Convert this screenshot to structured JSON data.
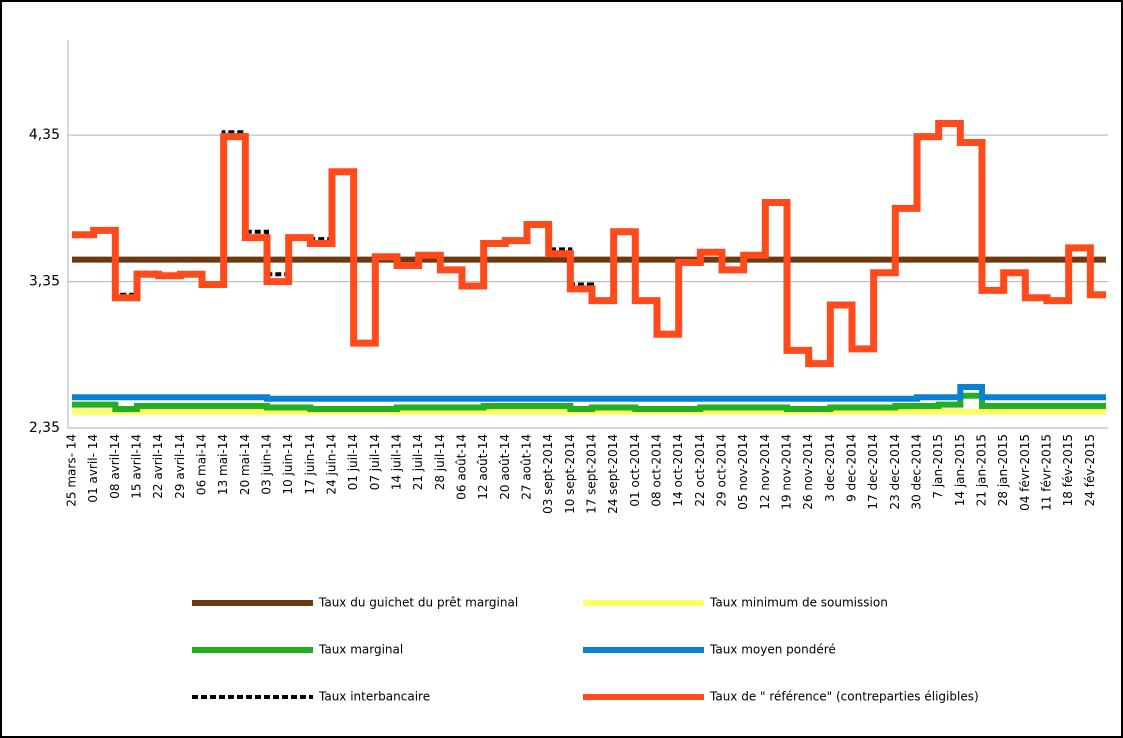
{
  "chart_data": {
    "type": "line",
    "step": true,
    "categories": [
      "25 mars- 14",
      "01 avril- 14",
      "08 avril-14",
      "15 avril-14",
      "22 avril-14",
      "29 avril-14",
      "06 mai-14",
      "13 mai-14",
      "20 mai-14",
      "03 juin-14",
      "10 juin-14",
      "17 juin-14",
      "24 juin-14",
      "01 juil-14",
      "07 juil-14",
      "14 juil-14",
      "21 juil-14",
      "28 juil-14",
      "06 août-14",
      "12 août-14",
      "20 août-14",
      "27 août-14",
      "03 sept-2014",
      "10 sept-2014",
      "17 sept-2014",
      "24 sept-2014",
      "01 oct-2014",
      "08 oct-2014",
      "14 oct-2014",
      "22 oct-2014",
      "29 oct-2014",
      "05 nov-2014",
      "12 nov-2014",
      "19 nov-2014",
      "26 nov-2014",
      "3 dec-2014",
      "9 dec-2014",
      "17 dec-2014",
      "23 dec-2014",
      "30 dec-2014",
      "7 jan-2015",
      "14 jan-2015",
      "21 jan-2015",
      "28 jan-2015",
      "04 févr-2015",
      "11 févr-2015",
      "18 fév-2015",
      "24 fév-2015"
    ],
    "series": [
      {
        "name": "Taux du guichet du prêt marginal",
        "color": "#6b3a10",
        "values": [
          3.5,
          3.5,
          3.5,
          3.5,
          3.5,
          3.5,
          3.5,
          3.5,
          3.5,
          3.5,
          3.5,
          3.5,
          3.5,
          3.5,
          3.5,
          3.5,
          3.5,
          3.5,
          3.5,
          3.5,
          3.5,
          3.5,
          3.5,
          3.5,
          3.5,
          3.5,
          3.5,
          3.5,
          3.5,
          3.5,
          3.5,
          3.5,
          3.5,
          3.5,
          3.5,
          3.5,
          3.5,
          3.5,
          3.5,
          3.5,
          3.5,
          3.5,
          3.5,
          3.5,
          3.5,
          3.5,
          3.5,
          3.5
        ]
      },
      {
        "name": "Taux minimum de soumission",
        "color": "#ffff66",
        "values": [
          2.46,
          2.46,
          2.46,
          2.46,
          2.46,
          2.46,
          2.46,
          2.46,
          2.46,
          2.46,
          2.46,
          2.46,
          2.46,
          2.46,
          2.46,
          2.46,
          2.46,
          2.46,
          2.46,
          2.46,
          2.46,
          2.46,
          2.46,
          2.46,
          2.46,
          2.46,
          2.46,
          2.46,
          2.46,
          2.46,
          2.46,
          2.46,
          2.46,
          2.46,
          2.46,
          2.46,
          2.46,
          2.46,
          2.46,
          2.46,
          2.46,
          2.46,
          2.46,
          2.46,
          2.46,
          2.46,
          2.46,
          2.46
        ]
      },
      {
        "name": "Taux marginal",
        "color": "#22b022",
        "values": [
          2.51,
          2.51,
          2.48,
          2.5,
          2.5,
          2.5,
          2.5,
          2.5,
          2.5,
          2.49,
          2.49,
          2.48,
          2.48,
          2.48,
          2.48,
          2.49,
          2.49,
          2.49,
          2.49,
          2.5,
          2.5,
          2.5,
          2.5,
          2.48,
          2.49,
          2.49,
          2.48,
          2.48,
          2.48,
          2.49,
          2.49,
          2.49,
          2.49,
          2.48,
          2.48,
          2.49,
          2.49,
          2.49,
          2.5,
          2.5,
          2.51,
          2.57,
          2.5,
          2.5,
          2.5,
          2.5,
          2.5,
          2.5
        ]
      },
      {
        "name": "Taux moyen pondéré",
        "color": "#0a80d0",
        "values": [
          2.56,
          2.56,
          2.56,
          2.56,
          2.56,
          2.56,
          2.56,
          2.56,
          2.56,
          2.55,
          2.55,
          2.55,
          2.55,
          2.55,
          2.55,
          2.55,
          2.55,
          2.55,
          2.55,
          2.55,
          2.55,
          2.55,
          2.55,
          2.55,
          2.55,
          2.55,
          2.55,
          2.55,
          2.55,
          2.55,
          2.55,
          2.55,
          2.55,
          2.55,
          2.55,
          2.55,
          2.55,
          2.55,
          2.55,
          2.56,
          2.56,
          2.63,
          2.56,
          2.56,
          2.56,
          2.56,
          2.56,
          2.56
        ]
      },
      {
        "name": "Taux interbancaire",
        "color": "#000000",
        "dash": true,
        "values": [
          3.67,
          3.7,
          3.26,
          3.41,
          3.39,
          3.4,
          3.33,
          4.37,
          3.69,
          3.4,
          3.65,
          3.64,
          4.1,
          2.93,
          3.52,
          3.46,
          3.53,
          3.43,
          3.32,
          3.61,
          3.63,
          3.74,
          3.57,
          3.33,
          3.22,
          3.7,
          3.22,
          3.0,
          3.48,
          3.55,
          3.43,
          3.53,
          3.89,
          2.88,
          2.79,
          3.19,
          2.89,
          3.41,
          3.85,
          4.34,
          4.43,
          4.3,
          3.29,
          3.41,
          3.24,
          3.22,
          3.58,
          3.26
        ]
      },
      {
        "name": "Taux de \" référence\" (contreparties éligibles)",
        "color": "#ff4a1c",
        "values": [
          3.67,
          3.7,
          3.24,
          3.4,
          3.39,
          3.4,
          3.33,
          4.34,
          3.65,
          3.35,
          3.65,
          3.61,
          4.1,
          2.93,
          3.52,
          3.46,
          3.53,
          3.43,
          3.32,
          3.61,
          3.63,
          3.74,
          3.54,
          3.3,
          3.22,
          3.69,
          3.22,
          2.99,
          3.48,
          3.55,
          3.43,
          3.53,
          3.89,
          2.88,
          2.79,
          3.19,
          2.89,
          3.41,
          3.85,
          4.34,
          4.43,
          4.3,
          3.29,
          3.41,
          3.24,
          3.22,
          3.58,
          3.26
        ]
      }
    ],
    "ylim": [
      2.35,
      5
    ],
    "yticks": [
      {
        "value": 2.35,
        "label": "2,35"
      },
      {
        "value": 3.35,
        "label": "3,35"
      },
      {
        "value": 4.35,
        "label": "4,35"
      }
    ],
    "grid": true
  }
}
